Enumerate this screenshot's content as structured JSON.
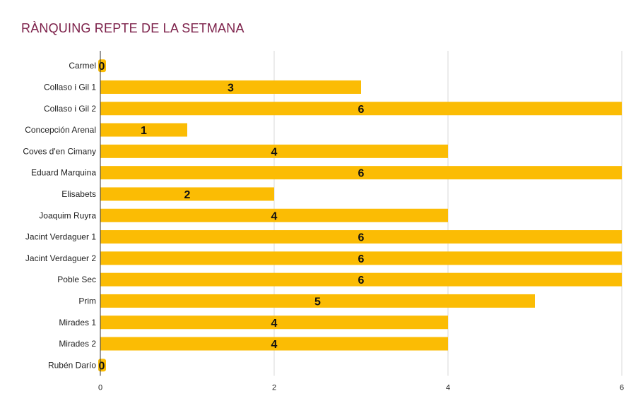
{
  "chart_data": {
    "type": "bar",
    "orientation": "horizontal",
    "title": "RÀNQUING REPTE DE LA SETMANA",
    "xlabel": "",
    "ylabel": "",
    "categories": [
      "Carmel",
      "Collaso i Gil 1",
      "Collaso i Gil 2",
      "Concepción Arenal",
      "Coves d'en Cimany",
      "Eduard Marquina",
      "Elisabets",
      "Joaquim Ruyra",
      "Jacint Verdaguer 1",
      "Jacint Verdaguer 2",
      "Poble Sec",
      "Prim",
      "Mirades 1",
      "Mirades 2",
      "Rubén Darío"
    ],
    "values": [
      0,
      3,
      6,
      1,
      4,
      6,
      2,
      4,
      6,
      6,
      6,
      5,
      4,
      4,
      0
    ],
    "xlim": [
      0,
      6
    ],
    "xticks": [
      0,
      2,
      4,
      6
    ],
    "grid": true,
    "legend": "none",
    "data_labels": true,
    "colors": {
      "bar": "#fbbc04",
      "title": "#7b1e48",
      "grid": "#d9d9d9",
      "axis": "#333333"
    }
  }
}
